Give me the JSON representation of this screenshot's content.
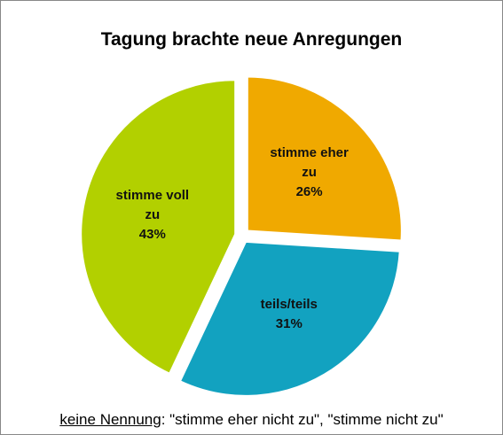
{
  "chart_data": {
    "type": "pie",
    "title": "Tagung brachte neue Anregungen",
    "categories": [
      "stimme eher zu",
      "teils/teils",
      "stimme voll zu"
    ],
    "values": [
      26,
      31,
      43
    ],
    "value_labels": [
      "26%",
      "31%",
      "43%"
    ],
    "colors": [
      "#f0a900",
      "#12a2c0",
      "#b2d000"
    ],
    "footnote": {
      "label": "keine Nennung",
      "text": ": \"stimme eher nicht zu\", \"stimme nicht zu\""
    }
  }
}
